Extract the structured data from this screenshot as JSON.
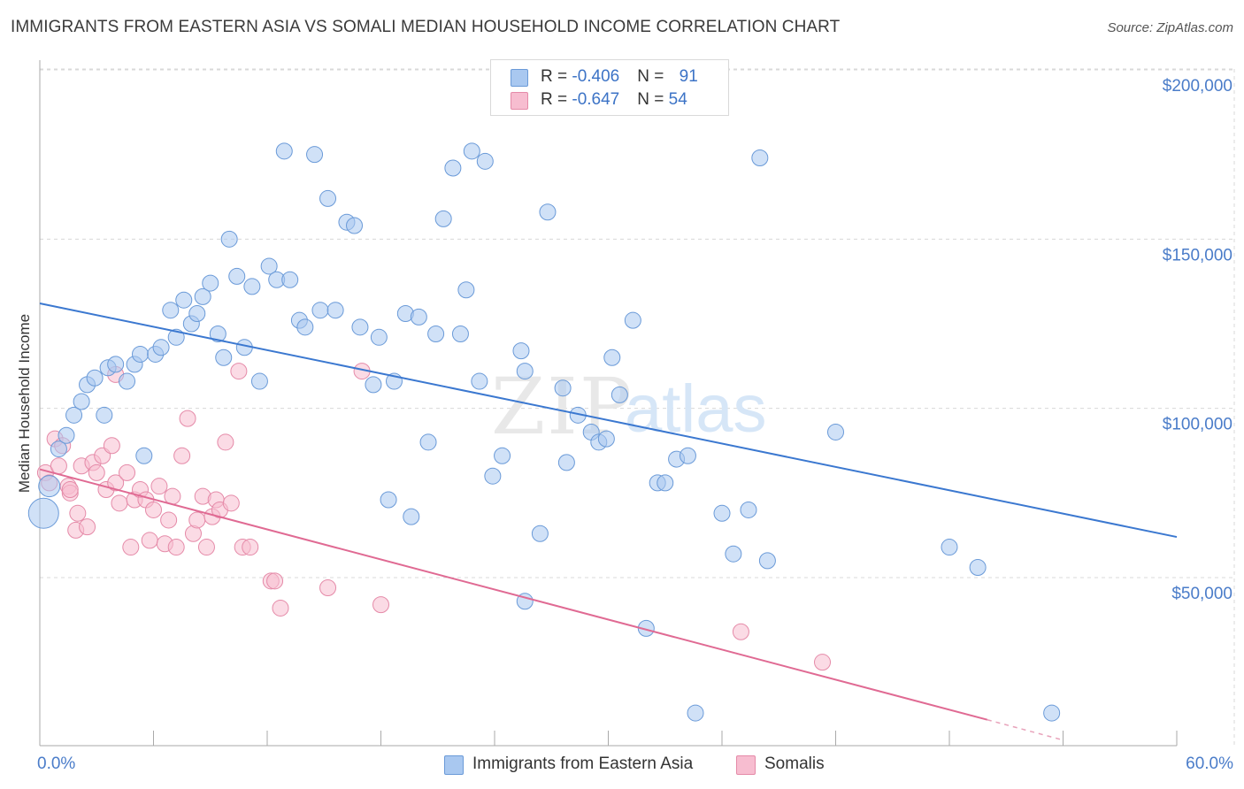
{
  "header": {
    "title": "IMMIGRANTS FROM EASTERN ASIA VS SOMALI MEDIAN HOUSEHOLD INCOME CORRELATION CHART",
    "source": "Source: ZipAtlas.com"
  },
  "watermark": {
    "part1": "ZIP",
    "part2": "atlas"
  },
  "legend": {
    "rows": [
      {
        "r_label": "R = ",
        "r_value": "-0.406",
        "n_label": "N = ",
        "n_value": "91",
        "color": "#a9c8f0",
        "border": "#6a9ad8"
      },
      {
        "r_label": "R = ",
        "r_value": "-0.647",
        "n_label": "N = ",
        "n_value": "54",
        "color": "#f7bdd0",
        "border": "#e58aa8"
      }
    ]
  },
  "bottom_legend": {
    "items": [
      {
        "label": "Immigrants from Eastern Asia",
        "color": "#a9c8f0",
        "border": "#6a9ad8"
      },
      {
        "label": "Somalis",
        "color": "#f7bdd0",
        "border": "#e58aa8"
      }
    ]
  },
  "x_axis": {
    "min_label": "0.0%",
    "max_label": "60.0%"
  },
  "chart_data": {
    "type": "scatter",
    "title": "IMMIGRANTS FROM EASTERN ASIA VS SOMALI MEDIAN HOUSEHOLD INCOME CORRELATION CHART",
    "xlabel": "",
    "ylabel": "Median Household Income",
    "xlim": [
      0,
      60
    ],
    "ylim": [
      0,
      205000
    ],
    "y_ticks": [
      {
        "value": 50000,
        "label": "$50,000"
      },
      {
        "value": 100000,
        "label": "$100,000"
      },
      {
        "value": 150000,
        "label": "$150,000"
      },
      {
        "value": 200000,
        "label": "$200,000"
      }
    ],
    "grid": true,
    "legend_position": "top-center",
    "series": [
      {
        "name": "Immigrants from Eastern Asia",
        "color": "#6a9ad8",
        "fill": "#a9c8f0",
        "trend": {
          "x0": 0,
          "y0": 131000,
          "x1": 60,
          "y1": 62000
        },
        "points": [
          [
            0.2,
            69000
          ],
          [
            0.5,
            77000
          ],
          [
            1.0,
            88000
          ],
          [
            1.4,
            92000
          ],
          [
            1.8,
            98000
          ],
          [
            2.2,
            102000
          ],
          [
            2.5,
            107000
          ],
          [
            2.9,
            109000
          ],
          [
            3.4,
            98000
          ],
          [
            3.6,
            112000
          ],
          [
            4.0,
            113000
          ],
          [
            4.6,
            108000
          ],
          [
            5.0,
            113000
          ],
          [
            5.3,
            116000
          ],
          [
            5.5,
            86000
          ],
          [
            6.1,
            116000
          ],
          [
            6.4,
            118000
          ],
          [
            6.9,
            129000
          ],
          [
            7.2,
            121000
          ],
          [
            7.6,
            132000
          ],
          [
            8.0,
            125000
          ],
          [
            8.3,
            128000
          ],
          [
            8.6,
            133000
          ],
          [
            9.0,
            137000
          ],
          [
            9.4,
            122000
          ],
          [
            9.7,
            115000
          ],
          [
            10.0,
            150000
          ],
          [
            10.4,
            139000
          ],
          [
            10.8,
            118000
          ],
          [
            11.2,
            136000
          ],
          [
            11.6,
            108000
          ],
          [
            12.1,
            142000
          ],
          [
            12.5,
            138000
          ],
          [
            13.2,
            138000
          ],
          [
            12.9,
            176000
          ],
          [
            13.7,
            126000
          ],
          [
            14.0,
            124000
          ],
          [
            14.5,
            175000
          ],
          [
            14.8,
            129000
          ],
          [
            15.2,
            162000
          ],
          [
            15.6,
            129000
          ],
          [
            16.2,
            155000
          ],
          [
            16.6,
            154000
          ],
          [
            16.9,
            124000
          ],
          [
            17.6,
            107000
          ],
          [
            17.9,
            121000
          ],
          [
            18.4,
            73000
          ],
          [
            18.7,
            108000
          ],
          [
            19.3,
            128000
          ],
          [
            19.6,
            68000
          ],
          [
            20.0,
            127000
          ],
          [
            20.5,
            90000
          ],
          [
            20.9,
            122000
          ],
          [
            21.3,
            156000
          ],
          [
            21.8,
            171000
          ],
          [
            22.2,
            122000
          ],
          [
            22.5,
            135000
          ],
          [
            22.8,
            176000
          ],
          [
            23.2,
            108000
          ],
          [
            23.5,
            173000
          ],
          [
            23.9,
            80000
          ],
          [
            24.4,
            86000
          ],
          [
            25.4,
            117000
          ],
          [
            25.6,
            111000
          ],
          [
            25.6,
            43000
          ],
          [
            26.4,
            63000
          ],
          [
            26.8,
            158000
          ],
          [
            27.6,
            106000
          ],
          [
            27.8,
            84000
          ],
          [
            28.4,
            98000
          ],
          [
            29.1,
            93000
          ],
          [
            29.5,
            90000
          ],
          [
            29.9,
            91000
          ],
          [
            30.2,
            115000
          ],
          [
            30.6,
            104000
          ],
          [
            31.3,
            126000
          ],
          [
            32.0,
            35000
          ],
          [
            32.6,
            78000
          ],
          [
            33.0,
            78000
          ],
          [
            33.6,
            85000
          ],
          [
            34.2,
            86000
          ],
          [
            34.6,
            10000
          ],
          [
            36.0,
            69000
          ],
          [
            36.6,
            57000
          ],
          [
            37.4,
            70000
          ],
          [
            38.0,
            174000
          ],
          [
            38.4,
            55000
          ],
          [
            42.0,
            93000
          ],
          [
            48.0,
            59000
          ],
          [
            49.5,
            53000
          ],
          [
            53.4,
            10000
          ]
        ]
      },
      {
        "name": "Somalis",
        "color": "#e58aa8",
        "fill": "#f7bdd0",
        "trend": {
          "x0": 0,
          "y0": 82000,
          "x1": 50,
          "y1": 8000,
          "dashed_to": {
            "x": 54,
            "y": 2000
          }
        },
        "points": [
          [
            0.3,
            81000
          ],
          [
            0.5,
            78000
          ],
          [
            0.8,
            91000
          ],
          [
            1.0,
            83000
          ],
          [
            1.2,
            89000
          ],
          [
            1.5,
            77000
          ],
          [
            1.6,
            75000
          ],
          [
            1.9,
            64000
          ],
          [
            2.0,
            69000
          ],
          [
            2.2,
            83000
          ],
          [
            2.5,
            65000
          ],
          [
            2.8,
            84000
          ],
          [
            3.0,
            81000
          ],
          [
            3.3,
            86000
          ],
          [
            3.5,
            76000
          ],
          [
            3.8,
            89000
          ],
          [
            4.0,
            78000
          ],
          [
            4.2,
            72000
          ],
          [
            4.6,
            81000
          ],
          [
            4.8,
            59000
          ],
          [
            5.0,
            73000
          ],
          [
            5.3,
            76000
          ],
          [
            5.6,
            73000
          ],
          [
            5.8,
            61000
          ],
          [
            6.0,
            70000
          ],
          [
            6.3,
            77000
          ],
          [
            6.6,
            60000
          ],
          [
            6.8,
            67000
          ],
          [
            7.0,
            74000
          ],
          [
            7.2,
            59000
          ],
          [
            7.5,
            86000
          ],
          [
            7.8,
            97000
          ],
          [
            8.1,
            63000
          ],
          [
            8.3,
            67000
          ],
          [
            8.6,
            74000
          ],
          [
            8.8,
            59000
          ],
          [
            9.1,
            68000
          ],
          [
            9.3,
            73000
          ],
          [
            9.5,
            70000
          ],
          [
            9.8,
            90000
          ],
          [
            10.1,
            72000
          ],
          [
            10.5,
            111000
          ],
          [
            10.7,
            59000
          ],
          [
            11.1,
            59000
          ],
          [
            12.2,
            49000
          ],
          [
            12.4,
            49000
          ],
          [
            12.7,
            41000
          ],
          [
            15.2,
            47000
          ],
          [
            17.0,
            111000
          ],
          [
            18.0,
            42000
          ],
          [
            37.0,
            34000
          ],
          [
            41.3,
            25000
          ],
          [
            4.0,
            110000
          ],
          [
            1.6,
            76000
          ]
        ]
      }
    ]
  }
}
